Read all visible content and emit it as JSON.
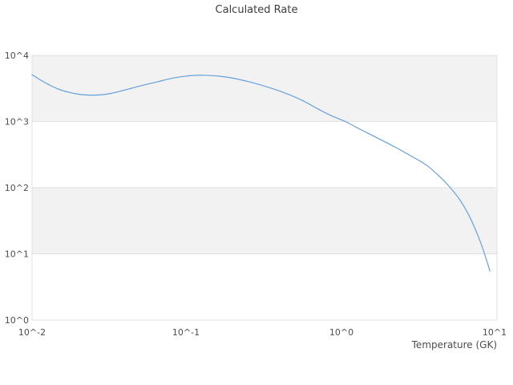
{
  "chart_data": {
    "type": "line",
    "title": "Calculated Rate",
    "xlabel": "Temperature (GK)",
    "ylabel": "",
    "x_scale": "log",
    "y_scale": "log",
    "xlim": [
      0.01,
      10
    ],
    "ylim": [
      1,
      10000
    ],
    "xtick_labels": [
      "10^-2",
      "10^-1",
      "10^0",
      "10^1"
    ],
    "ytick_labels": [
      "10^0",
      "10^1",
      "10^2",
      "10^3",
      "10^4"
    ],
    "legend": "none",
    "grid": "alternating horizontal decade bands, no vertical gridlines",
    "line_color": "#66a0dc",
    "band_color": "#f2f2f2",
    "grid_color": "#e0e0e0",
    "text_color": "#4d4d4d",
    "title_color": "#3d3d3d",
    "series": [
      {
        "name": "Calculated Rate",
        "points": [
          [
            0.01,
            5100
          ],
          [
            0.0115,
            4150
          ],
          [
            0.013,
            3550
          ],
          [
            0.015,
            3050
          ],
          [
            0.0175,
            2750
          ],
          [
            0.02,
            2580
          ],
          [
            0.023,
            2510
          ],
          [
            0.027,
            2520
          ],
          [
            0.032,
            2650
          ],
          [
            0.04,
            3000
          ],
          [
            0.05,
            3450
          ],
          [
            0.065,
            4000
          ],
          [
            0.08,
            4500
          ],
          [
            0.095,
            4800
          ],
          [
            0.11,
            4970
          ],
          [
            0.13,
            5000
          ],
          [
            0.16,
            4850
          ],
          [
            0.2,
            4500
          ],
          [
            0.25,
            4000
          ],
          [
            0.32,
            3400
          ],
          [
            0.42,
            2750
          ],
          [
            0.55,
            2100
          ],
          [
            0.7,
            1550
          ],
          [
            0.85,
            1230
          ],
          [
            1.05,
            1000
          ],
          [
            1.3,
            770
          ],
          [
            1.7,
            560
          ],
          [
            2.2,
            410
          ],
          [
            2.8,
            300
          ],
          [
            3.5,
            220
          ],
          [
            4.3,
            145
          ],
          [
            5.0,
            100
          ],
          [
            5.8,
            64
          ],
          [
            6.6,
            38
          ],
          [
            7.4,
            21
          ],
          [
            8.0,
            13
          ],
          [
            8.6,
            7.8
          ],
          [
            9.0,
            5.5
          ]
        ]
      }
    ]
  }
}
